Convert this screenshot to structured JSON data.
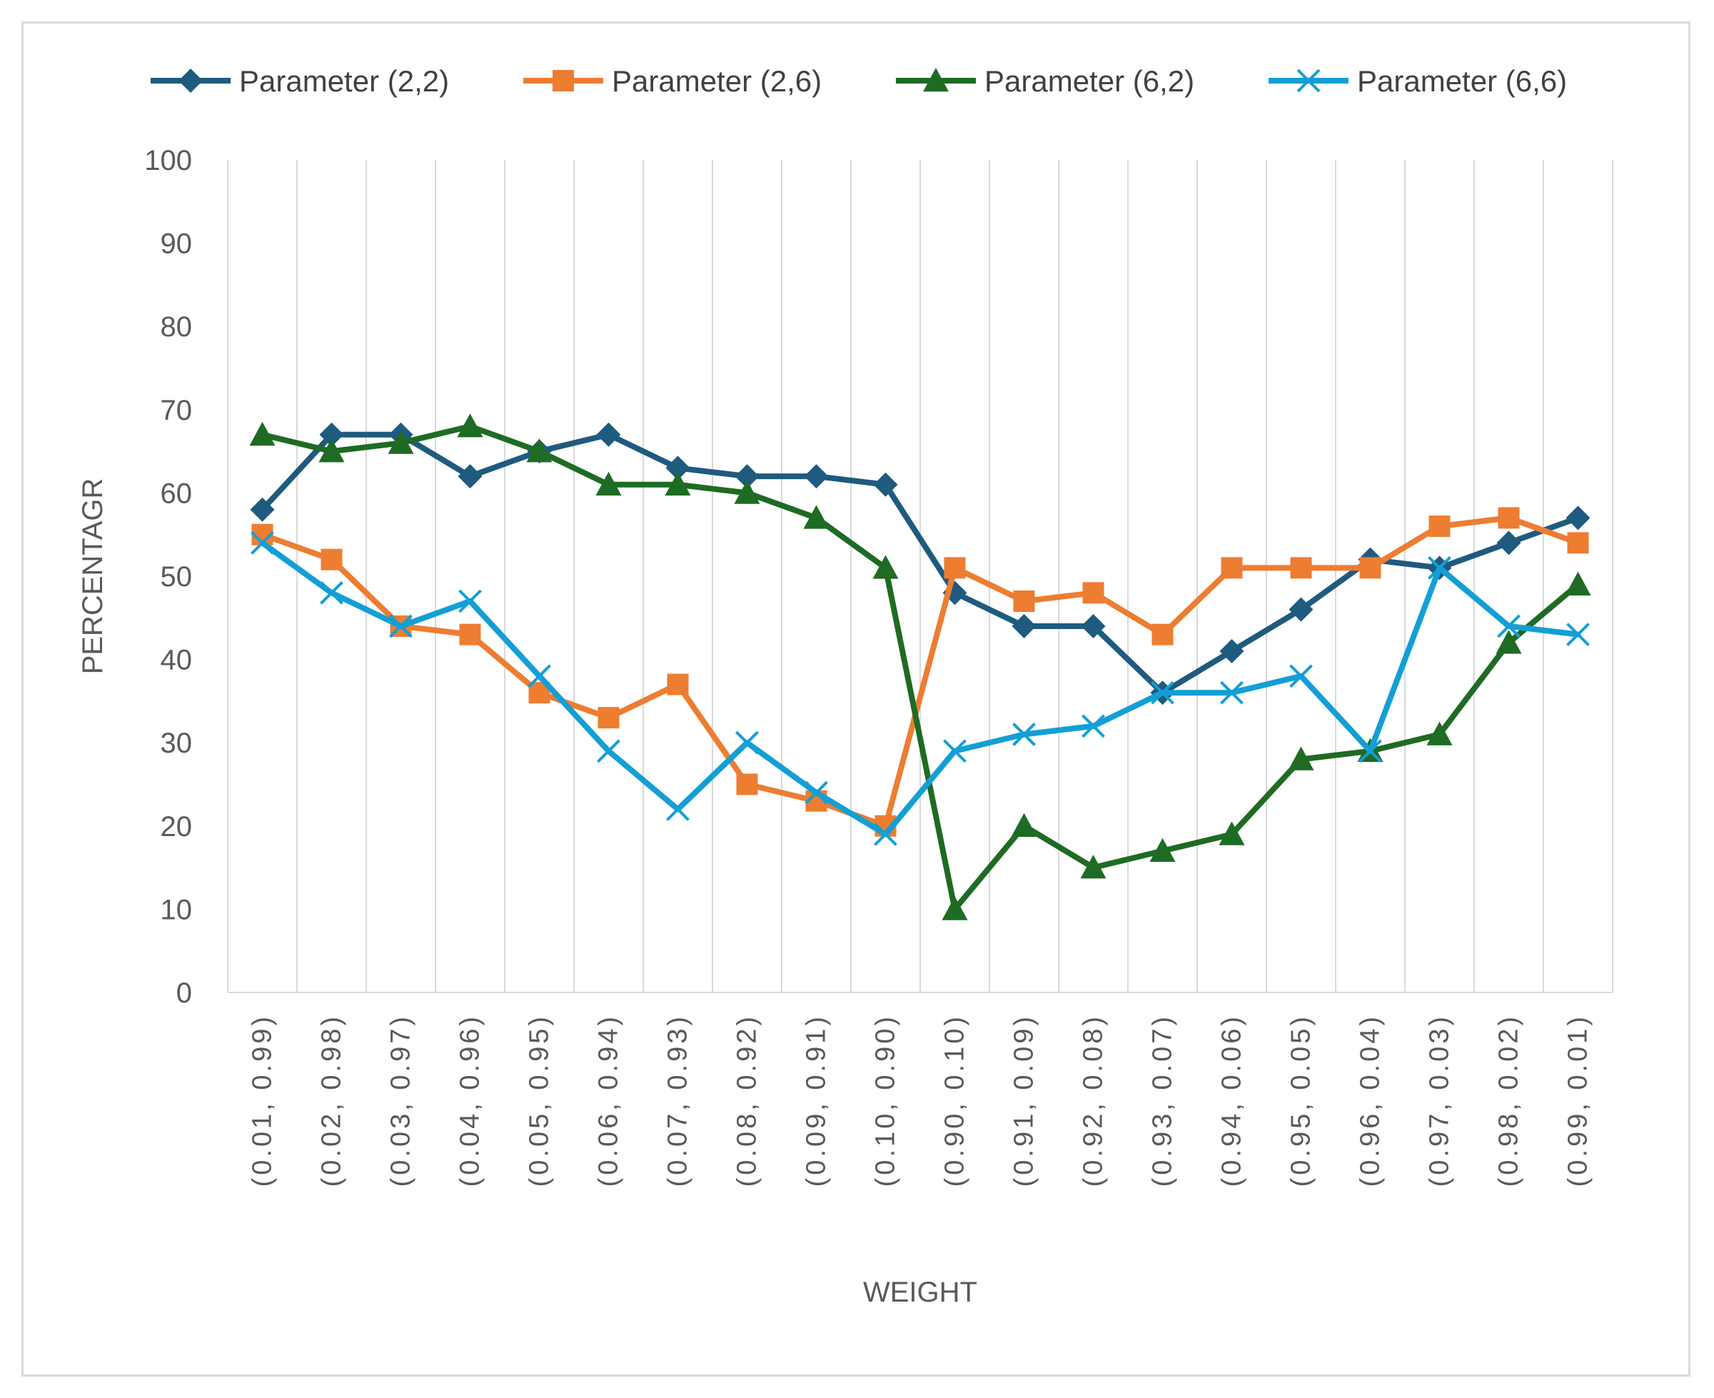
{
  "chart_data": {
    "type": "line",
    "title": "",
    "xlabel": "WEIGHT",
    "ylabel": "PERCENTAGR",
    "ylim": [
      0,
      100
    ],
    "yticks": [
      0,
      10,
      20,
      30,
      40,
      50,
      60,
      70,
      80,
      90,
      100
    ],
    "grid": "vertical",
    "legend_position": "top",
    "categories": [
      "(0.01, 0.99)",
      "(0.02, 0.98)",
      "(0.03, 0.97)",
      "(0.04, 0.96)",
      "(0.05, 0.95)",
      "(0.06, 0.94)",
      "(0.07, 0.93)",
      "(0.08, 0.92)",
      "(0.09, 0.91)",
      "(0.10, 0.90)",
      "(0.90, 0.10)",
      "(0.91, 0.09)",
      "(0.92, 0.08)",
      "(0.93, 0.07)",
      "(0.94, 0.06)",
      "(0.95, 0.05)",
      "(0.96, 0.04)",
      "(0.97, 0.03)",
      "(0.98, 0.02)",
      "(0.99, 0.01)"
    ],
    "series": [
      {
        "name": "Parameter (2,2)",
        "color": "#1f5a7f",
        "marker": "diamond",
        "values": [
          58,
          67,
          67,
          62,
          65,
          67,
          63,
          62,
          62,
          61,
          48,
          44,
          44,
          36,
          41,
          46,
          52,
          51,
          54,
          57
        ]
      },
      {
        "name": "Parameter (2,6)",
        "color": "#ed7d31",
        "marker": "square",
        "values": [
          55,
          52,
          44,
          43,
          36,
          33,
          37,
          25,
          23,
          20,
          51,
          47,
          48,
          43,
          51,
          51,
          51,
          56,
          57,
          54
        ]
      },
      {
        "name": "Parameter (6,2)",
        "color": "#1e6b23",
        "marker": "triangle",
        "values": [
          67,
          65,
          66,
          68,
          65,
          61,
          61,
          60,
          57,
          51,
          10,
          20,
          15,
          17,
          19,
          28,
          29,
          31,
          42,
          49
        ]
      },
      {
        "name": "Parameter (6,6)",
        "color": "#139fd5",
        "marker": "x",
        "values": [
          54,
          48,
          44,
          47,
          38,
          29,
          22,
          30,
          24,
          19,
          29,
          31,
          32,
          36,
          36,
          38,
          29,
          51,
          44,
          43
        ]
      }
    ]
  }
}
